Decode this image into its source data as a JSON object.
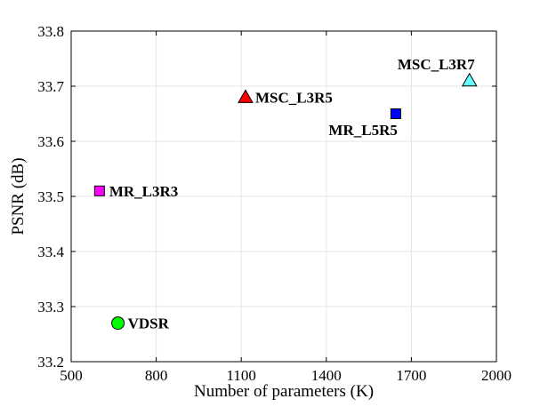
{
  "chart_data": {
    "type": "scatter",
    "title": "",
    "xlabel": "Number of parameters (K)",
    "ylabel": "PSNR (dB)",
    "xlim": [
      500,
      2000
    ],
    "ylim": [
      33.2,
      33.8
    ],
    "xticks": [
      "500",
      "800",
      "1100",
      "1400",
      "1700",
      "2000"
    ],
    "yticks": [
      "33.2",
      "33.3",
      "33.4",
      "33.5",
      "33.6",
      "33.7",
      "33.8"
    ],
    "grid": true,
    "points": [
      {
        "label": "MSC_L3R7",
        "x": 1905,
        "y": 33.71,
        "marker": "triangle",
        "color": "#66ffff",
        "label_pos": "above-left"
      },
      {
        "label": "MSC_L3R5",
        "x": 1115,
        "y": 33.68,
        "marker": "triangle",
        "color": "#ff0000",
        "label_pos": "right"
      },
      {
        "label": "MR_L5R5",
        "x": 1645,
        "y": 33.65,
        "marker": "square",
        "color": "#0000ff",
        "label_pos": "below-left"
      },
      {
        "label": "MR_L3R3",
        "x": 600,
        "y": 33.51,
        "marker": "square",
        "color": "#ff00ff",
        "label_pos": "right"
      },
      {
        "label": "VDSR",
        "x": 665,
        "y": 33.27,
        "marker": "circle",
        "color": "#00ff00",
        "label_pos": "right"
      }
    ]
  }
}
